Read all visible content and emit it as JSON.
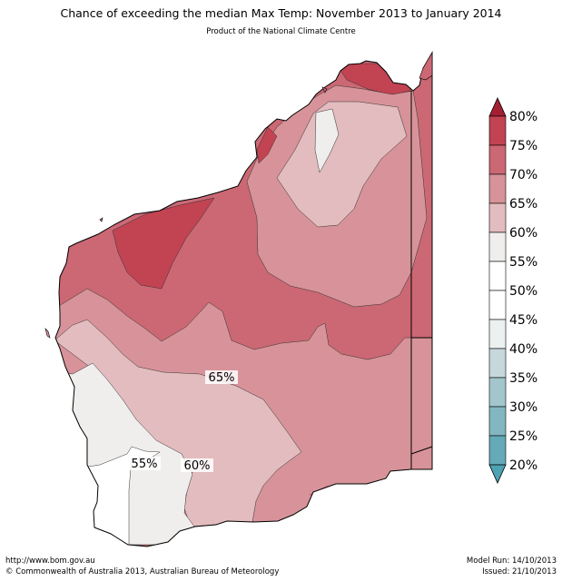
{
  "title": "Chance of exceeding the median Max Temp: November 2013 to January 2014",
  "subtitle": "Product of the National Climate Centre",
  "map_labels": [
    {
      "id": "label-65",
      "text": "65%"
    },
    {
      "id": "label-55",
      "text": "55%"
    },
    {
      "id": "label-60",
      "text": "60%"
    }
  ],
  "legend": {
    "ticks": [
      "80%",
      "75%",
      "70%",
      "65%",
      "60%",
      "55%",
      "50%",
      "45%",
      "40%",
      "35%",
      "30%",
      "25%",
      "20%"
    ],
    "colors": [
      "#a51f34",
      "#c24352",
      "#cb6874",
      "#d79399",
      "#e3bcbf",
      "#f0eeec",
      "#ffffff",
      "#ffffff",
      "#ebf0f1",
      "#c6d8dc",
      "#a2c6cc",
      "#82b7c1",
      "#64aab8",
      "#4da2b3"
    ]
  },
  "footer": {
    "url": "http://www.bom.gov.au",
    "copyright": "©  Commonwealth of Australia 2013, Australian Bureau of Meteorology",
    "model_run": "Model Run: 14/10/2013",
    "issued": "Issued: 21/10/2013"
  }
}
